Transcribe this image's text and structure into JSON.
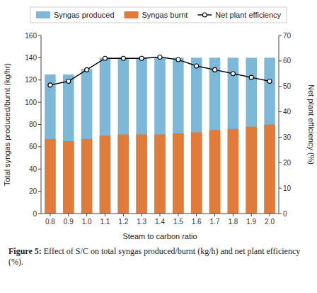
{
  "chart_data": {
    "type": "bar",
    "x_label": "Steam to carbon ratio",
    "y_label": "Total syngas produced/burnt (kg/hr)",
    "y2_label": "Net plant efficiency (%)",
    "categories": [
      "0.8",
      "0.9",
      "1.0",
      "1.1",
      "1.2",
      "1.3",
      "1.4",
      "1.5",
      "1.6",
      "1.7",
      "1.8",
      "1.9",
      "2.0"
    ],
    "series": [
      {
        "name": "Syngas produced",
        "color": "#7db8d8",
        "values": [
          125,
          125,
          130,
          140,
          140,
          140,
          140,
          140,
          140,
          140,
          140,
          140,
          140
        ]
      },
      {
        "name": "Syngas burnt",
        "color": "#e07b3a",
        "values": [
          67,
          65,
          67,
          70,
          71,
          71,
          71,
          72,
          73,
          75,
          76,
          78,
          80
        ]
      },
      {
        "name": "Net plant efficiency",
        "type": "line",
        "axis": "y2",
        "color": "#000000",
        "marker": "circle",
        "values": [
          50.5,
          52.0,
          56.5,
          61.0,
          61.0,
          61.0,
          61.5,
          60.5,
          58.0,
          56.5,
          55.0,
          53.5,
          52.0
        ]
      }
    ],
    "ylim": [
      0,
      160
    ],
    "yticks": [
      0,
      20,
      40,
      60,
      80,
      100,
      120,
      140,
      160
    ],
    "y2lim": [
      0,
      70
    ],
    "y2ticks": [
      0,
      10,
      20,
      30,
      40,
      50,
      60,
      70
    ],
    "stacked": false,
    "grid": false,
    "legend": "top",
    "annotations": [
      "Figure 5:",
      " Effect of S/C on total syngas produced/burnt (kg/h) and net plant efficiency (%)."
    ]
  }
}
